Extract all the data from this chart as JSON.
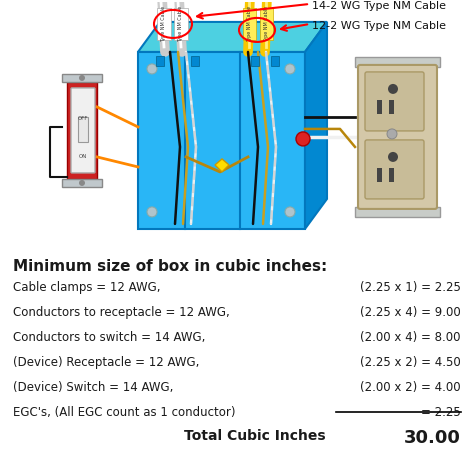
{
  "title": "Minimum size of box in cubic inches:",
  "rows": [
    {
      "label": "Cable clamps = 12 AWG,",
      "formula": "(2.25 x 1) = 2.25"
    },
    {
      "label": "Conductors to receptacle = 12 AWG,",
      "formula": "(2.25 x 4) = 9.00"
    },
    {
      "label": "Conductors to switch = 14 AWG,",
      "formula": "(2.00 x 4) = 8.00"
    },
    {
      "label": "(Device) Receptacle = 12 AWG,",
      "formula": "(2.25 x 2) = 4.50"
    },
    {
      "label": "(Device) Switch = 14 AWG,",
      "formula": "(2.00 x 2) = 4.00"
    },
    {
      "label": "EGC's, (All EGC count as 1 conductor)",
      "formula": "= 2.25"
    }
  ],
  "total_label": "Total Cubic Inches",
  "total_value": "30.00",
  "cable_label_14": "14-2 WG Type NM Cable",
  "cable_label_12": "12-2 WG Type NM Cable",
  "bg_color": "#ffffff",
  "text_color": "#1a1a1a",
  "box_front_color": "#29b6f6",
  "box_top_color": "#4dd0e1",
  "box_right_color": "#0288d1",
  "box_edge_color": "#0277bd",
  "title_fontsize": 11,
  "row_fontsize": 8.5,
  "total_label_fontsize": 10,
  "total_value_fontsize": 13
}
